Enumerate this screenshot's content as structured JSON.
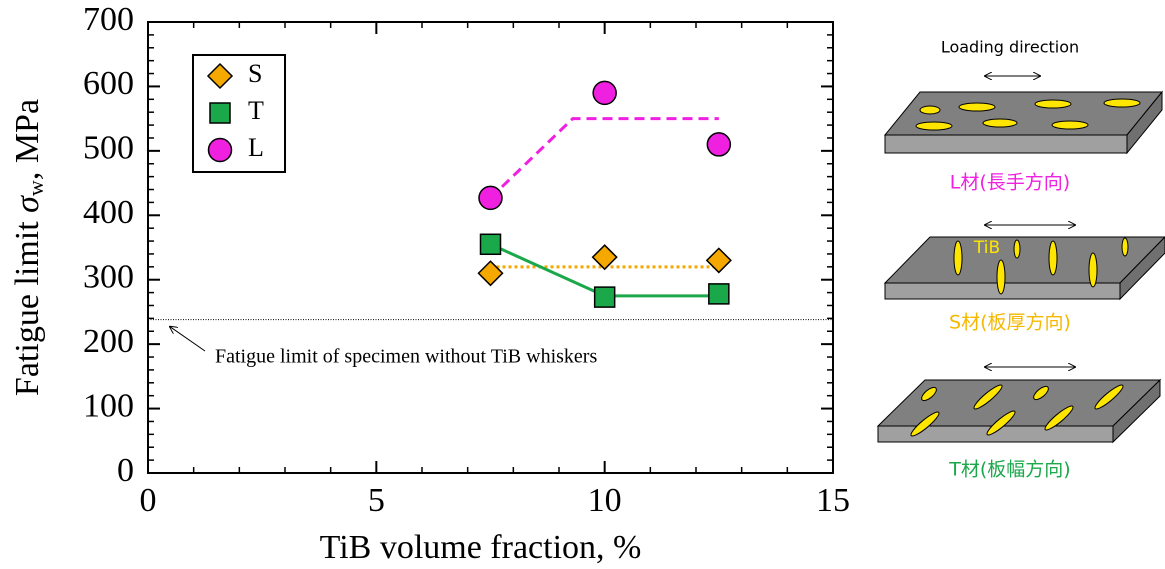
{
  "chart_data": {
    "type": "scatter",
    "x_label": "TiB volume fraction, %",
    "y_label": {
      "prefix": "Fatigue limit ",
      "symbol": "σ",
      "subscript": "w",
      "suffix": ", MPa"
    },
    "xlim": [
      0,
      15
    ],
    "ylim": [
      0,
      700
    ],
    "xticks": [
      0,
      5,
      10,
      15
    ],
    "yticks": [
      0,
      100,
      200,
      300,
      400,
      500,
      600,
      700
    ],
    "xminorticks": [
      1,
      2,
      3,
      4,
      6,
      7,
      8,
      9,
      11,
      12,
      13,
      14
    ],
    "yminorticks": [
      20,
      40,
      60,
      80,
      120,
      140,
      160,
      180,
      220,
      240,
      260,
      280,
      320,
      340,
      360,
      380,
      420,
      440,
      460,
      480,
      520,
      540,
      560,
      580,
      620,
      640,
      660,
      680
    ],
    "legend": "upper left",
    "series": [
      {
        "name": "S",
        "color": "#f5a800",
        "marker": "diamond",
        "x": [
          7.5,
          10,
          12.5
        ],
        "values": [
          310,
          335,
          330
        ],
        "fit": {
          "style": "dotted",
          "x": [
            7.5,
            12.5
          ],
          "values": [
            320,
            320
          ]
        }
      },
      {
        "name": "T",
        "color": "#1aa84a",
        "marker": "square",
        "x": [
          7.5,
          10,
          12.5
        ],
        "values": [
          355,
          273,
          278
        ],
        "fit": {
          "style": "solid",
          "x": [
            7.5,
            10,
            12.5
          ],
          "values": [
            355,
            275,
            275
          ]
        }
      },
      {
        "name": "L",
        "color": "#f020e0",
        "marker": "circle",
        "x": [
          7.5,
          10,
          12.5
        ],
        "values": [
          427,
          590,
          510
        ],
        "fit": {
          "style": "dashed",
          "x": [
            7.5,
            9.3,
            12.5
          ],
          "values": [
            427,
            550,
            550
          ]
        }
      }
    ],
    "reference_line": 238,
    "annotation": "Fatigue limit of specimen without TiB whiskers"
  },
  "schematic": {
    "loading_direction": "Loading direction",
    "tib_label": "TiB",
    "panels": [
      "L材(長手方向)",
      "S材(板厚方向)",
      "T材(板幅方向)"
    ]
  }
}
